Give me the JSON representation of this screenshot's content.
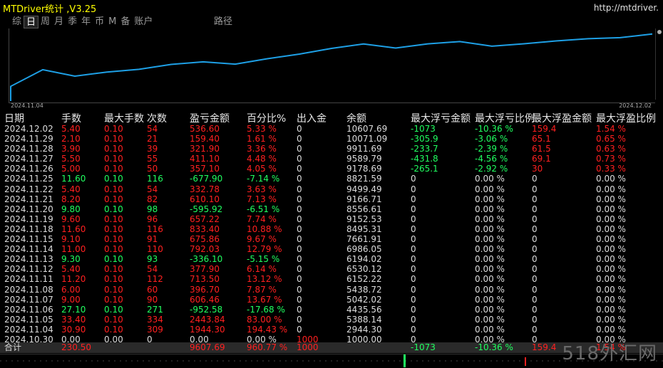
{
  "app": {
    "title": "MTDriver统计 ,V3.25",
    "url": "http://mtdriver.",
    "watermark": "518外汇网"
  },
  "period_tabs": [
    {
      "label": "综",
      "active": false
    },
    {
      "label": "日",
      "active": true
    },
    {
      "label": "周",
      "active": false
    },
    {
      "label": "月",
      "active": false
    },
    {
      "label": "季",
      "active": false
    },
    {
      "label": "年",
      "active": false
    },
    {
      "label": "币",
      "active": false
    },
    {
      "label": "M",
      "active": false
    },
    {
      "label": "备",
      "active": false
    },
    {
      "label": "账户",
      "active": false
    }
  ],
  "extra_tab": "路径",
  "chart": {
    "start_label": "2024.11.04",
    "end_label": "2024.12.02",
    "line_color": "#1ea0e6"
  },
  "chart_data": {
    "type": "line",
    "x": [
      "2024.11.04",
      "2024.11.05",
      "2024.11.06",
      "2024.11.07",
      "2024.11.08",
      "2024.11.11",
      "2024.11.12",
      "2024.11.13",
      "2024.11.14",
      "2024.11.15",
      "2024.11.18",
      "2024.11.19",
      "2024.11.20",
      "2024.11.21",
      "2024.11.22",
      "2024.11.25",
      "2024.11.26",
      "2024.11.27",
      "2024.11.28",
      "2024.11.29",
      "2024.12.02"
    ],
    "values": [
      2944.3,
      5388.14,
      4435.56,
      5042.02,
      5438.72,
      6152.22,
      6530.12,
      6194.02,
      6986.05,
      7661.91,
      8495.31,
      9152.53,
      8556.61,
      9166.71,
      9499.49,
      8821.59,
      9178.69,
      9589.79,
      9911.69,
      10071.09,
      10607.69
    ]
  },
  "columns": [
    "日期",
    "手数",
    "最大手数",
    "次数",
    "盈亏金额",
    "百分比%",
    "出入金",
    "余额",
    "最大浮亏金额",
    "最大浮亏比例",
    "最大浮盈金额",
    "最大浮盈比例"
  ],
  "rows": [
    {
      "date": "2024.12.02",
      "lots": "5.40",
      "max_lots": "0.10",
      "count": "54",
      "pnl": "536.60",
      "pct": "5.33 %",
      "io": "0",
      "bal": "10607.69",
      "mfl": "-1073",
      "mflp": "-10.36 %",
      "mfp": "159.4",
      "mfpp": "1.54 %",
      "sign": "pos",
      "float": true
    },
    {
      "date": "2024.11.29",
      "lots": "2.10",
      "max_lots": "0.10",
      "count": "21",
      "pnl": "159.40",
      "pct": "1.61 %",
      "io": "0",
      "bal": "10071.09",
      "mfl": "-305.9",
      "mflp": "-3.06 %",
      "mfp": "65.1",
      "mfpp": "0.65 %",
      "sign": "pos",
      "float": true
    },
    {
      "date": "2024.11.28",
      "lots": "3.90",
      "max_lots": "0.10",
      "count": "39",
      "pnl": "321.90",
      "pct": "3.36 %",
      "io": "0",
      "bal": "9911.69",
      "mfl": "-233.7",
      "mflp": "-2.39 %",
      "mfp": "61.5",
      "mfpp": "0.63 %",
      "sign": "pos",
      "float": true
    },
    {
      "date": "2024.11.27",
      "lots": "5.50",
      "max_lots": "0.10",
      "count": "55",
      "pnl": "411.10",
      "pct": "4.48 %",
      "io": "0",
      "bal": "9589.79",
      "mfl": "-431.8",
      "mflp": "-4.56 %",
      "mfp": "69.1",
      "mfpp": "0.73 %",
      "sign": "pos",
      "float": true
    },
    {
      "date": "2024.11.26",
      "lots": "5.00",
      "max_lots": "0.10",
      "count": "50",
      "pnl": "357.10",
      "pct": "4.05 %",
      "io": "0",
      "bal": "9178.69",
      "mfl": "-265.1",
      "mflp": "-2.92 %",
      "mfp": "30",
      "mfpp": "0.33 %",
      "sign": "pos",
      "float": true
    },
    {
      "date": "2024.11.25",
      "lots": "11.60",
      "max_lots": "0.10",
      "count": "116",
      "pnl": "-677.90",
      "pct": "-7.14 %",
      "io": "0",
      "bal": "8821.59",
      "mfl": "0",
      "mflp": "0.00 %",
      "mfp": "0",
      "mfpp": "0.00 %",
      "sign": "neg",
      "float": false
    },
    {
      "date": "2024.11.22",
      "lots": "5.40",
      "max_lots": "0.10",
      "count": "54",
      "pnl": "332.78",
      "pct": "3.63 %",
      "io": "0",
      "bal": "9499.49",
      "mfl": "0",
      "mflp": "0.00 %",
      "mfp": "0",
      "mfpp": "0.00 %",
      "sign": "pos",
      "float": false
    },
    {
      "date": "2024.11.21",
      "lots": "8.20",
      "max_lots": "0.10",
      "count": "82",
      "pnl": "610.10",
      "pct": "7.13 %",
      "io": "0",
      "bal": "9166.71",
      "mfl": "0",
      "mflp": "0.00 %",
      "mfp": "0",
      "mfpp": "0.00 %",
      "sign": "pos",
      "float": false
    },
    {
      "date": "2024.11.20",
      "lots": "9.80",
      "max_lots": "0.10",
      "count": "98",
      "pnl": "-595.92",
      "pct": "-6.51 %",
      "io": "0",
      "bal": "8556.61",
      "mfl": "0",
      "mflp": "0.00 %",
      "mfp": "0",
      "mfpp": "0.00 %",
      "sign": "neg",
      "float": false
    },
    {
      "date": "2024.11.19",
      "lots": "9.60",
      "max_lots": "0.10",
      "count": "96",
      "pnl": "657.22",
      "pct": "7.74 %",
      "io": "0",
      "bal": "9152.53",
      "mfl": "0",
      "mflp": "0.00 %",
      "mfp": "0",
      "mfpp": "0.00 %",
      "sign": "pos",
      "float": false
    },
    {
      "date": "2024.11.18",
      "lots": "11.60",
      "max_lots": "0.10",
      "count": "116",
      "pnl": "833.40",
      "pct": "10.88 %",
      "io": "0",
      "bal": "8495.31",
      "mfl": "0",
      "mflp": "0.00 %",
      "mfp": "0",
      "mfpp": "0.00 %",
      "sign": "pos",
      "float": false
    },
    {
      "date": "2024.11.15",
      "lots": "9.10",
      "max_lots": "0.10",
      "count": "91",
      "pnl": "675.86",
      "pct": "9.67 %",
      "io": "0",
      "bal": "7661.91",
      "mfl": "0",
      "mflp": "0.00 %",
      "mfp": "0",
      "mfpp": "0.00 %",
      "sign": "pos",
      "float": false
    },
    {
      "date": "2024.11.14",
      "lots": "11.00",
      "max_lots": "0.10",
      "count": "110",
      "pnl": "792.03",
      "pct": "12.79 %",
      "io": "0",
      "bal": "6986.05",
      "mfl": "0",
      "mflp": "0.00 %",
      "mfp": "0",
      "mfpp": "0.00 %",
      "sign": "pos",
      "float": false
    },
    {
      "date": "2024.11.13",
      "lots": "9.30",
      "max_lots": "0.10",
      "count": "93",
      "pnl": "-336.10",
      "pct": "-5.15 %",
      "io": "0",
      "bal": "6194.02",
      "mfl": "0",
      "mflp": "0.00 %",
      "mfp": "0",
      "mfpp": "0.00 %",
      "sign": "neg",
      "float": false
    },
    {
      "date": "2024.11.12",
      "lots": "5.40",
      "max_lots": "0.10",
      "count": "54",
      "pnl": "377.90",
      "pct": "6.14 %",
      "io": "0",
      "bal": "6530.12",
      "mfl": "0",
      "mflp": "0.00 %",
      "mfp": "0",
      "mfpp": "0.00 %",
      "sign": "pos",
      "float": false
    },
    {
      "date": "2024.11.11",
      "lots": "11.20",
      "max_lots": "0.10",
      "count": "112",
      "pnl": "713.50",
      "pct": "13.12 %",
      "io": "0",
      "bal": "6152.22",
      "mfl": "0",
      "mflp": "0.00 %",
      "mfp": "0",
      "mfpp": "0.00 %",
      "sign": "pos",
      "float": false
    },
    {
      "date": "2024.11.08",
      "lots": "6.00",
      "max_lots": "0.10",
      "count": "60",
      "pnl": "396.70",
      "pct": "7.87 %",
      "io": "0",
      "bal": "5438.72",
      "mfl": "0",
      "mflp": "0.00 %",
      "mfp": "0",
      "mfpp": "0.00 %",
      "sign": "pos",
      "float": false
    },
    {
      "date": "2024.11.07",
      "lots": "9.00",
      "max_lots": "0.10",
      "count": "90",
      "pnl": "606.46",
      "pct": "13.67 %",
      "io": "0",
      "bal": "5042.02",
      "mfl": "0",
      "mflp": "0.00 %",
      "mfp": "0",
      "mfpp": "0.00 %",
      "sign": "pos",
      "float": false
    },
    {
      "date": "2024.11.06",
      "lots": "27.10",
      "max_lots": "0.10",
      "count": "271",
      "pnl": "-952.58",
      "pct": "-17.68 %",
      "io": "0",
      "bal": "4435.56",
      "mfl": "0",
      "mflp": "0.00 %",
      "mfp": "0",
      "mfpp": "0.00 %",
      "sign": "neg",
      "float": false
    },
    {
      "date": "2024.11.05",
      "lots": "33.40",
      "max_lots": "0.10",
      "count": "334",
      "pnl": "2443.84",
      "pct": "83.00 %",
      "io": "0",
      "bal": "5388.14",
      "mfl": "0",
      "mflp": "0.00 %",
      "mfp": "0",
      "mfpp": "0.00 %",
      "sign": "pos",
      "float": false
    },
    {
      "date": "2024.11.04",
      "lots": "30.90",
      "max_lots": "0.10",
      "count": "309",
      "pnl": "1944.30",
      "pct": "194.43 %",
      "io": "0",
      "bal": "2944.30",
      "mfl": "0",
      "mflp": "0.00 %",
      "mfp": "0",
      "mfpp": "0.00 %",
      "sign": "pos",
      "float": false
    },
    {
      "date": "2024.10.30",
      "lots": "0.00",
      "max_lots": "0.00",
      "count": "0",
      "pnl": "0.00",
      "pct": "0.00 %",
      "io": "1000",
      "bal": "1000.00",
      "mfl": "0",
      "mflp": "0.00 %",
      "mfp": "0",
      "mfpp": "0.00 %",
      "sign": "zero",
      "float": false
    }
  ],
  "total": {
    "label": "合计",
    "lots": "230.50",
    "pnl": "9607.69",
    "pct": "960.77 %",
    "io": "1000",
    "mfl": "-1073",
    "mflp": "-10.36 %",
    "mfp": "159.4",
    "mfpp": "1.54 %"
  }
}
